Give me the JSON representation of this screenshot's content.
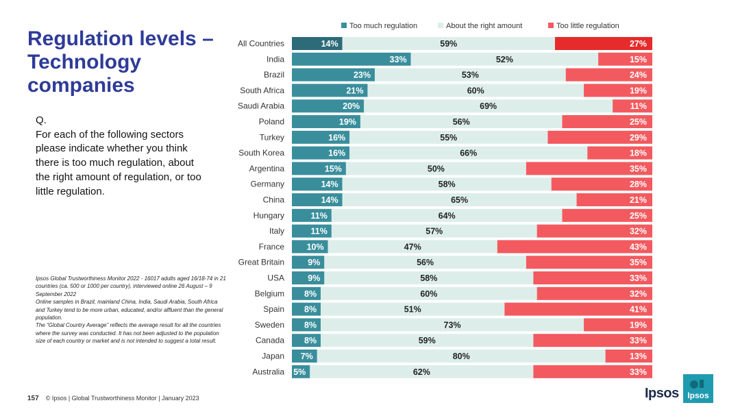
{
  "title": "Regulation levels – Technology companies",
  "question": {
    "prefix": "Q.",
    "text": "For each of the following sectors please indicate whether you think there is too much regulation, about the right amount of regulation, or too little regulation."
  },
  "notes": [
    "Ipsos Global Trustworthiness Monitor 2022 - 16017 adults aged 16/18-74 in 21 countries (ca. 500 or 1000 per country), interviewed online 26 August – 9 September 2022",
    "Online samples in Brazil, mainland China, India, Saudi Arabia, South Africa and Turkey tend to be more urban, educated, and/or affluent than the general population.",
    "The “Global Country Average” reflects the average result for all the countries where the survey was conducted. It has not been adjusted to the population size of each country or market and is not intended to suggest a total result."
  ],
  "footer": {
    "page": "157",
    "text": "© Ipsos | Global Trustworthiness Monitor | January 2023"
  },
  "brand": {
    "name": "Ipsos"
  },
  "colors": {
    "too_much": "#3A8E9C",
    "too_much_highlight": "#2D6B78",
    "about_right": "#DDEEEA",
    "too_little": "#F25A5F",
    "too_little_highlight": "#E52B2B",
    "title": "#2E3B97",
    "brand": "#1F9BB0"
  },
  "chart_data": {
    "type": "bar",
    "orientation": "horizontal",
    "stacked": true,
    "legend_position": "top",
    "categories": [
      "All Countries",
      "India",
      "Brazil",
      "South Africa",
      "Saudi Arabia",
      "Poland",
      "Turkey",
      "South Korea",
      "Argentina",
      "Germany",
      "China",
      "Hungary",
      "Italy",
      "France",
      "Great Britain",
      "USA",
      "Belgium",
      "Spain",
      "Sweden",
      "Canada",
      "Japan",
      "Australia"
    ],
    "series": [
      {
        "name": "Too much regulation",
        "values": [
          14,
          33,
          23,
          21,
          20,
          19,
          16,
          16,
          15,
          14,
          14,
          11,
          11,
          10,
          9,
          9,
          8,
          8,
          8,
          8,
          7,
          5
        ]
      },
      {
        "name": "About the right amount",
        "values": [
          59,
          52,
          53,
          60,
          69,
          56,
          55,
          66,
          50,
          58,
          65,
          64,
          57,
          47,
          56,
          58,
          60,
          51,
          73,
          59,
          80,
          62
        ]
      },
      {
        "name": "Too little regulation",
        "values": [
          27,
          15,
          24,
          19,
          11,
          25,
          29,
          18,
          35,
          28,
          21,
          25,
          32,
          43,
          35,
          33,
          32,
          41,
          19,
          33,
          13,
          33
        ]
      }
    ],
    "value_suffix": "%"
  }
}
